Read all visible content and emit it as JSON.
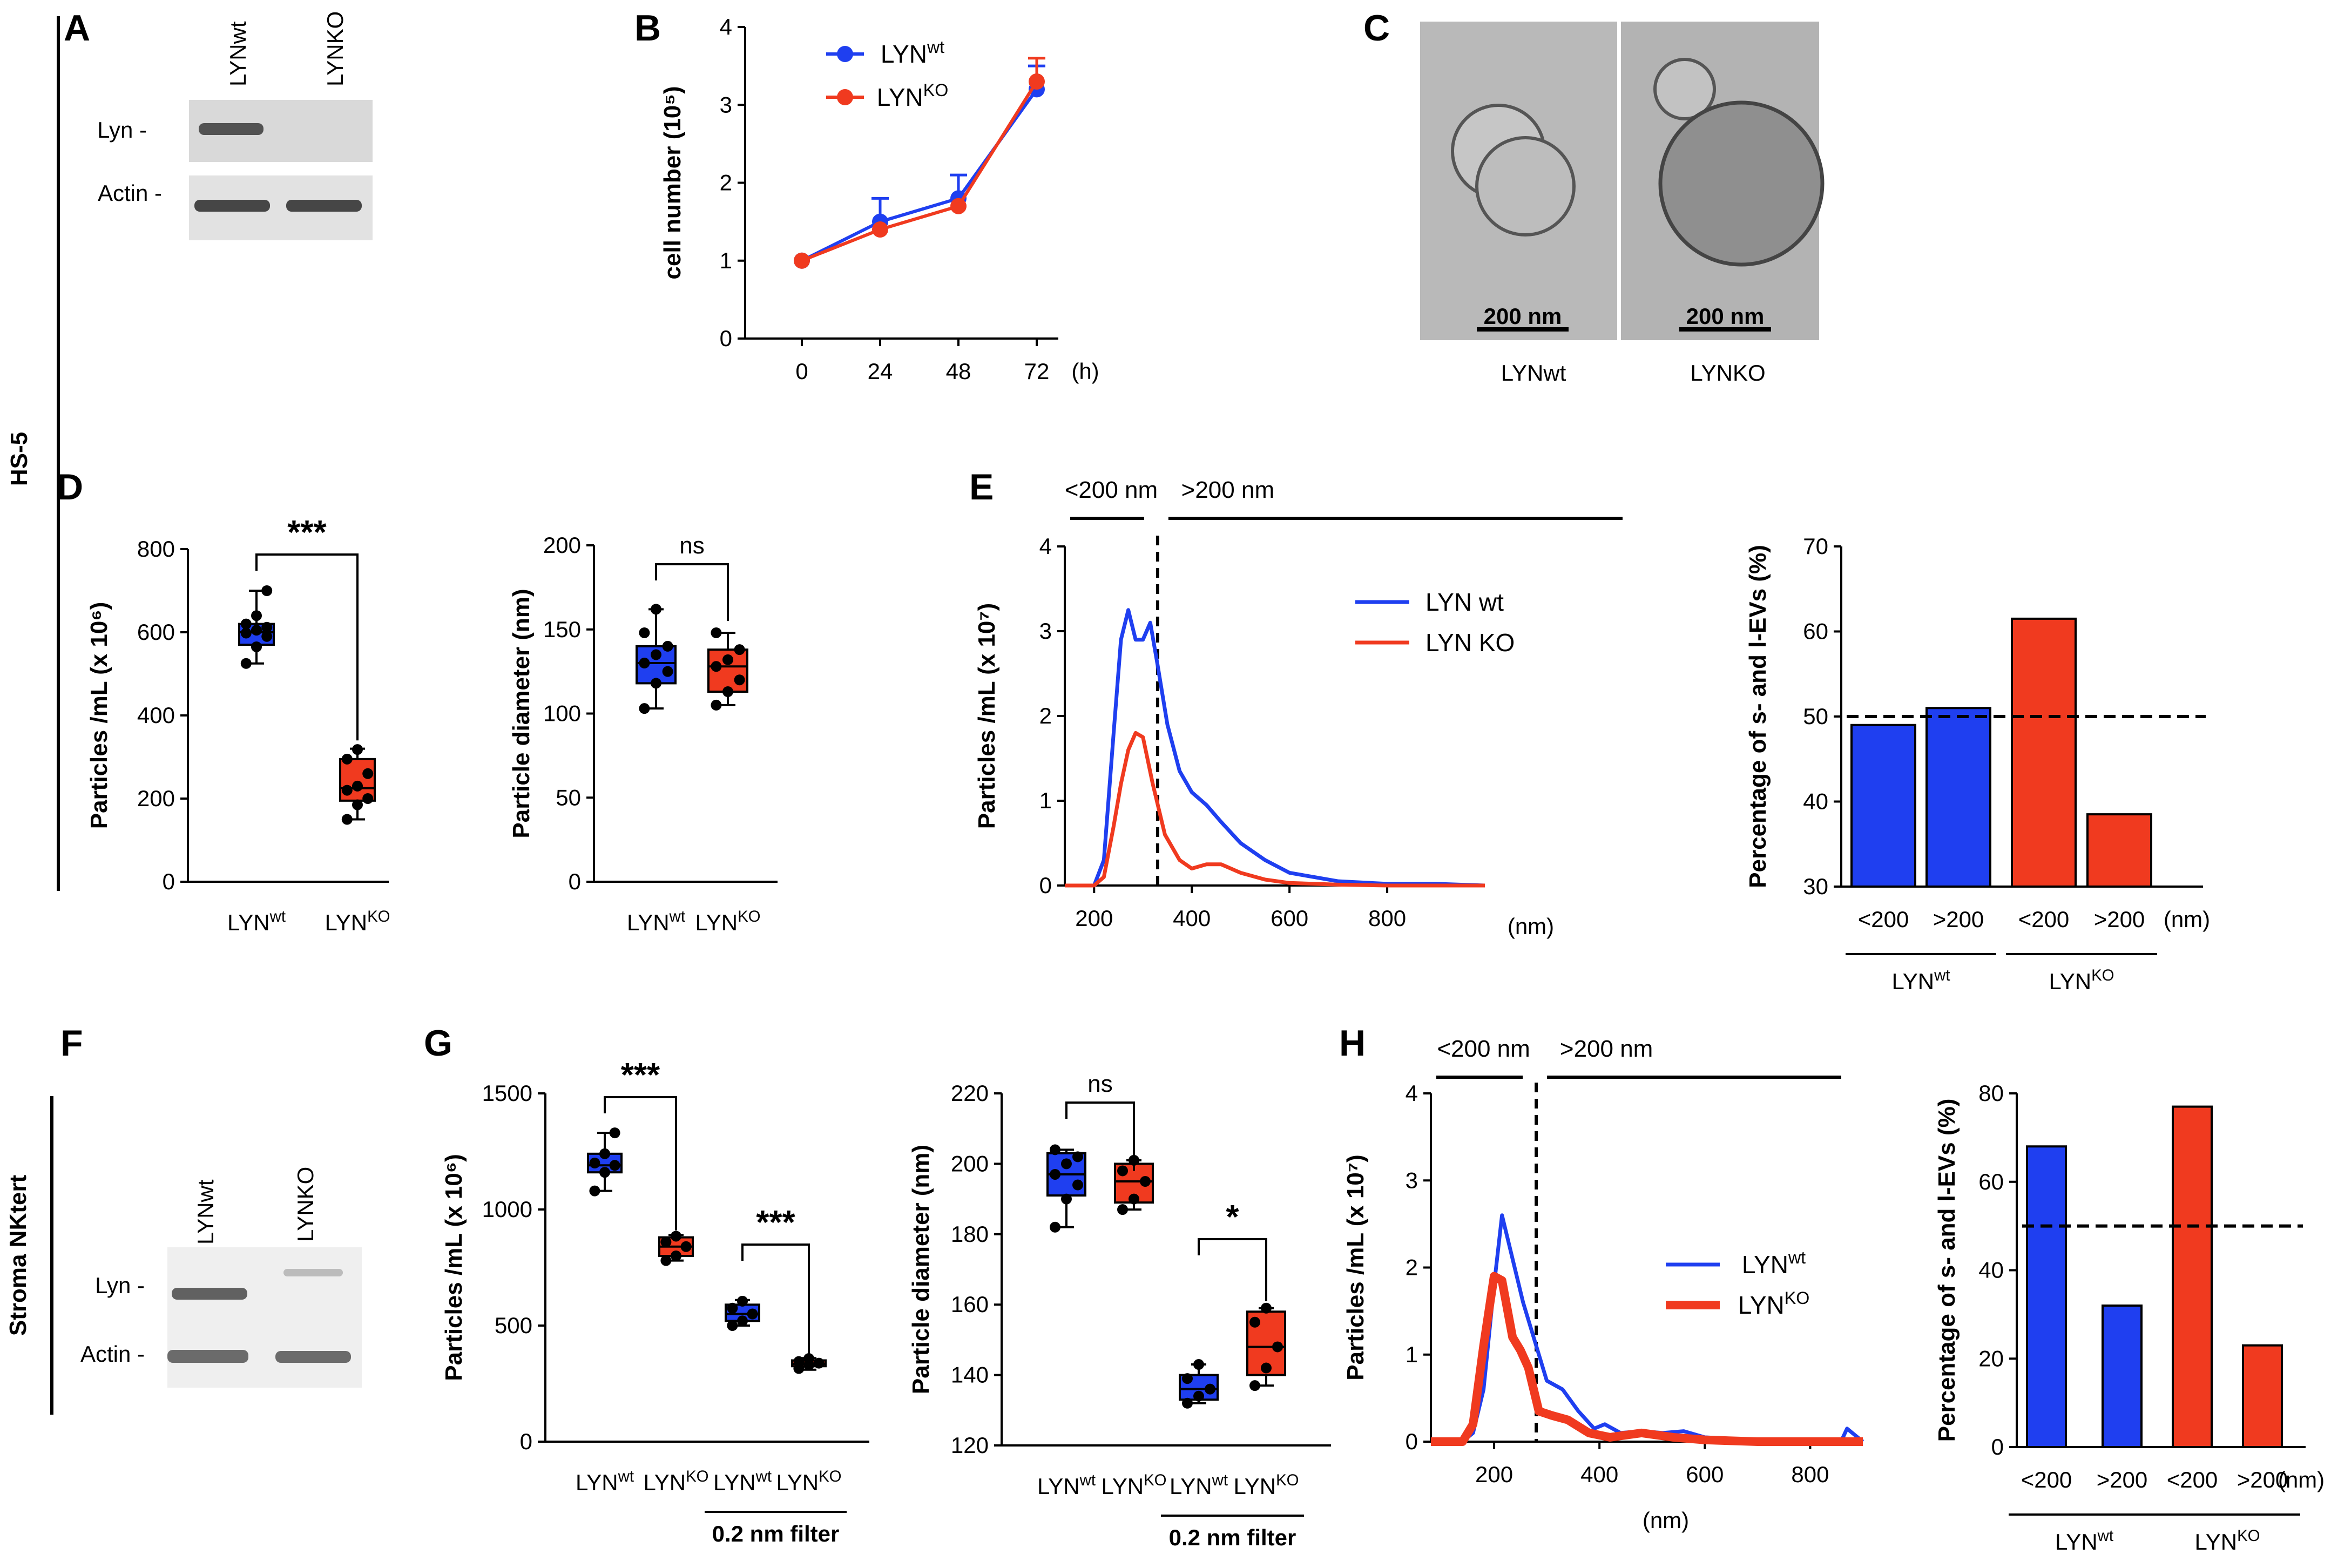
{
  "colors": {
    "wt": "#1f3ff0",
    "ko": "#f03a1f",
    "axis": "#000000",
    "blot_bg": "#d9d9d9",
    "em_bg": "#b8b8b8"
  },
  "cell_line_1": "HS-5",
  "cell_line_2": "Stroma NKtert",
  "panels": {
    "A": {
      "label": "A",
      "lanes": [
        "LYNwt",
        "LYNKO"
      ],
      "rows": [
        "Lyn -",
        "Actin -"
      ]
    },
    "B": {
      "label": "B"
    },
    "C": {
      "label": "C",
      "scale_bar": "200 nm",
      "captions": [
        "LYNwt",
        "LYNKO"
      ]
    },
    "D": {
      "label": "D"
    },
    "E": {
      "label": "E"
    },
    "F": {
      "label": "F",
      "lanes": [
        "LYNwt",
        "LYNKO"
      ],
      "rows": [
        "Lyn -",
        "Actin -"
      ]
    },
    "G": {
      "label": "G"
    },
    "H": {
      "label": "H"
    }
  },
  "chart_data": [
    {
      "id": "B",
      "type": "line",
      "x": [
        0,
        24,
        48,
        72
      ],
      "xunit": "(h)",
      "ylabel": "cell number (10⁵)",
      "ylim": [
        0,
        4
      ],
      "yticks": [
        0,
        1,
        2,
        3,
        4
      ],
      "series": [
        {
          "name": "LYNwt",
          "values": [
            1.0,
            1.5,
            1.8,
            3.2
          ],
          "errors": [
            0,
            0.3,
            0.3,
            0.3
          ]
        },
        {
          "name": "LYNKO",
          "values": [
            1.0,
            1.4,
            1.7,
            3.3
          ],
          "errors": [
            0,
            0,
            0,
            0.3
          ]
        }
      ]
    },
    {
      "id": "D1",
      "type": "box",
      "ylabel": "Particles /mL (x 10⁶)",
      "ylim": [
        0,
        800
      ],
      "yticks": [
        0,
        200,
        400,
        600,
        800
      ],
      "categories": [
        "LYNwt",
        "LYNKO"
      ],
      "significance": "***",
      "boxes": [
        {
          "min": 525,
          "q1": 570,
          "median": 600,
          "q3": 620,
          "max": 700,
          "points": [
            525,
            565,
            590,
            598,
            605,
            612,
            620,
            640,
            700
          ]
        },
        {
          "min": 150,
          "q1": 195,
          "median": 225,
          "q3": 295,
          "max": 320,
          "points": [
            150,
            185,
            200,
            220,
            230,
            260,
            295,
            318
          ]
        }
      ]
    },
    {
      "id": "D2",
      "type": "box",
      "ylabel": "Particle diameter (nm)",
      "ylim": [
        0,
        200
      ],
      "yticks": [
        0,
        50,
        100,
        150,
        200
      ],
      "categories": [
        "LYNwt",
        "LYNKO"
      ],
      "significance": "ns",
      "boxes": [
        {
          "min": 103,
          "q1": 118,
          "median": 130,
          "q3": 140,
          "max": 162,
          "points": [
            103,
            118,
            125,
            130,
            135,
            140,
            148,
            162
          ]
        },
        {
          "min": 105,
          "q1": 113,
          "median": 128,
          "q3": 138,
          "max": 148,
          "points": [
            105,
            113,
            120,
            128,
            132,
            138,
            148
          ]
        }
      ]
    },
    {
      "id": "E1",
      "type": "line",
      "ylabel": "Particles /mL (x 10⁷)",
      "ylim": [
        0,
        4
      ],
      "yticks": [
        0,
        1,
        2,
        3,
        4
      ],
      "xlim": [
        140,
        1000
      ],
      "xticks": [
        200,
        400,
        600,
        800
      ],
      "xunit": "(nm)",
      "size_bins": [
        "<200 nm",
        ">200 nm"
      ],
      "cutoff": 330,
      "series": [
        {
          "name": "LYN wt",
          "x": [
            140,
            200,
            220,
            240,
            255,
            270,
            285,
            300,
            315,
            330,
            350,
            375,
            400,
            430,
            460,
            500,
            550,
            600,
            700,
            800,
            900,
            1000
          ],
          "values": [
            0,
            0,
            0.3,
            1.8,
            2.9,
            3.25,
            2.9,
            2.9,
            3.1,
            2.6,
            1.9,
            1.35,
            1.1,
            0.95,
            0.75,
            0.5,
            0.3,
            0.15,
            0.05,
            0.02,
            0.02,
            0
          ]
        },
        {
          "name": "LYN KO",
          "x": [
            140,
            200,
            220,
            240,
            255,
            270,
            285,
            300,
            320,
            345,
            375,
            400,
            430,
            460,
            500,
            550,
            600,
            700,
            800,
            900,
            1000
          ],
          "values": [
            0,
            0,
            0.1,
            0.7,
            1.2,
            1.6,
            1.8,
            1.75,
            1.2,
            0.6,
            0.3,
            0.2,
            0.25,
            0.25,
            0.15,
            0.07,
            0.03,
            0.01,
            0,
            0,
            0
          ]
        }
      ]
    },
    {
      "id": "E2",
      "type": "bar",
      "ylabel": "Percentage of s- and l-EVs  (%)",
      "ylim": [
        30,
        70
      ],
      "yticks": [
        30,
        40,
        50,
        60,
        70
      ],
      "categories": [
        "<200",
        ">200",
        "<200",
        ">200"
      ],
      "xunit": "(nm)",
      "groups": [
        "LYNwt",
        "LYNKO"
      ],
      "values": [
        49,
        51,
        61.5,
        38.5
      ],
      "reference_line": 50
    },
    {
      "id": "G1",
      "type": "box",
      "ylabel": "Particles /mL (x 10⁶)",
      "ylim": [
        0,
        1500
      ],
      "yticks": [
        0,
        500,
        1000,
        1500
      ],
      "categories": [
        "LYNwt",
        "LYNKO",
        "LYNwt",
        "LYNKO"
      ],
      "filter_label": "0.2 nm filter",
      "significance": [
        "***",
        "***"
      ],
      "boxes": [
        {
          "min": 1080,
          "q1": 1160,
          "median": 1190,
          "q3": 1240,
          "max": 1330,
          "points": [
            1080,
            1160,
            1190,
            1200,
            1240,
            1330
          ]
        },
        {
          "min": 780,
          "q1": 800,
          "median": 840,
          "q3": 880,
          "max": 890,
          "points": [
            780,
            800,
            840,
            860,
            885
          ]
        },
        {
          "min": 500,
          "q1": 520,
          "median": 550,
          "q3": 590,
          "max": 610,
          "points": [
            500,
            520,
            550,
            575,
            605
          ]
        },
        {
          "min": 310,
          "q1": 325,
          "median": 335,
          "q3": 350,
          "max": 360,
          "points": [
            315,
            330,
            338,
            345,
            358
          ]
        }
      ]
    },
    {
      "id": "G2",
      "type": "box",
      "ylabel": "Particle diameter (nm)",
      "ylim": [
        120,
        220
      ],
      "yticks": [
        120,
        140,
        160,
        180,
        200,
        220
      ],
      "categories": [
        "LYNwt",
        "LYNKO",
        "LYNwt",
        "LYNKO"
      ],
      "filter_label": "0.2 nm filter",
      "significance": [
        "ns",
        "*"
      ],
      "boxes": [
        {
          "min": 182,
          "q1": 191,
          "median": 197,
          "q3": 203,
          "max": 204,
          "points": [
            182,
            190,
            194,
            197,
            200,
            202,
            204
          ]
        },
        {
          "min": 187,
          "q1": 189,
          "median": 195,
          "q3": 200,
          "max": 201,
          "points": [
            187,
            190,
            195,
            198,
            201
          ]
        },
        {
          "min": 132,
          "q1": 133,
          "median": 136,
          "q3": 140,
          "max": 143,
          "points": [
            132,
            134,
            136,
            139,
            143
          ]
        },
        {
          "min": 137,
          "q1": 140,
          "median": 148,
          "q3": 158,
          "max": 159,
          "points": [
            137,
            142,
            148,
            155,
            159
          ]
        }
      ]
    },
    {
      "id": "H1",
      "type": "line",
      "ylabel": "Particles /mL (x 10⁷)",
      "ylim": [
        0,
        4
      ],
      "yticks": [
        0,
        1,
        2,
        3,
        4
      ],
      "xlim": [
        80,
        900
      ],
      "xticks": [
        200,
        400,
        600,
        800
      ],
      "xunit": "(nm)",
      "size_bins": [
        "<200 nm",
        ">200 nm"
      ],
      "cutoff": 280,
      "series": [
        {
          "name": "LYNwt",
          "x": [
            80,
            140,
            160,
            180,
            200,
            215,
            235,
            255,
            275,
            300,
            330,
            360,
            390,
            410,
            440,
            480,
            520,
            560,
            600,
            700,
            800,
            860,
            870,
            900
          ],
          "values": [
            0,
            0,
            0.1,
            0.6,
            1.8,
            2.6,
            2.1,
            1.6,
            1.2,
            0.7,
            0.6,
            0.35,
            0.15,
            0.2,
            0.1,
            0.12,
            0.1,
            0.12,
            0.05,
            0.02,
            0.02,
            0.02,
            0.15,
            0
          ]
        },
        {
          "name": "LYNKO",
          "x": [
            80,
            140,
            160,
            180,
            200,
            215,
            235,
            250,
            265,
            285,
            310,
            340,
            380,
            420,
            480,
            540,
            600,
            700,
            800,
            900
          ],
          "values": [
            0,
            0,
            0.2,
            1.1,
            1.9,
            1.85,
            1.2,
            1.05,
            0.85,
            0.35,
            0.3,
            0.25,
            0.1,
            0.05,
            0.1,
            0.05,
            0.02,
            0,
            0,
            0
          ]
        }
      ]
    },
    {
      "id": "H2",
      "type": "bar",
      "ylabel": "Percentage of s- and l-EVs  (%)",
      "ylim": [
        0,
        80
      ],
      "yticks": [
        0,
        20,
        40,
        60,
        80
      ],
      "categories": [
        "<200",
        ">200",
        "<200",
        ">200"
      ],
      "xunit": "(nm)",
      "groups": [
        "LYNwt",
        "LYNKO"
      ],
      "values": [
        68,
        32,
        77,
        23
      ],
      "reference_line": 50
    }
  ]
}
